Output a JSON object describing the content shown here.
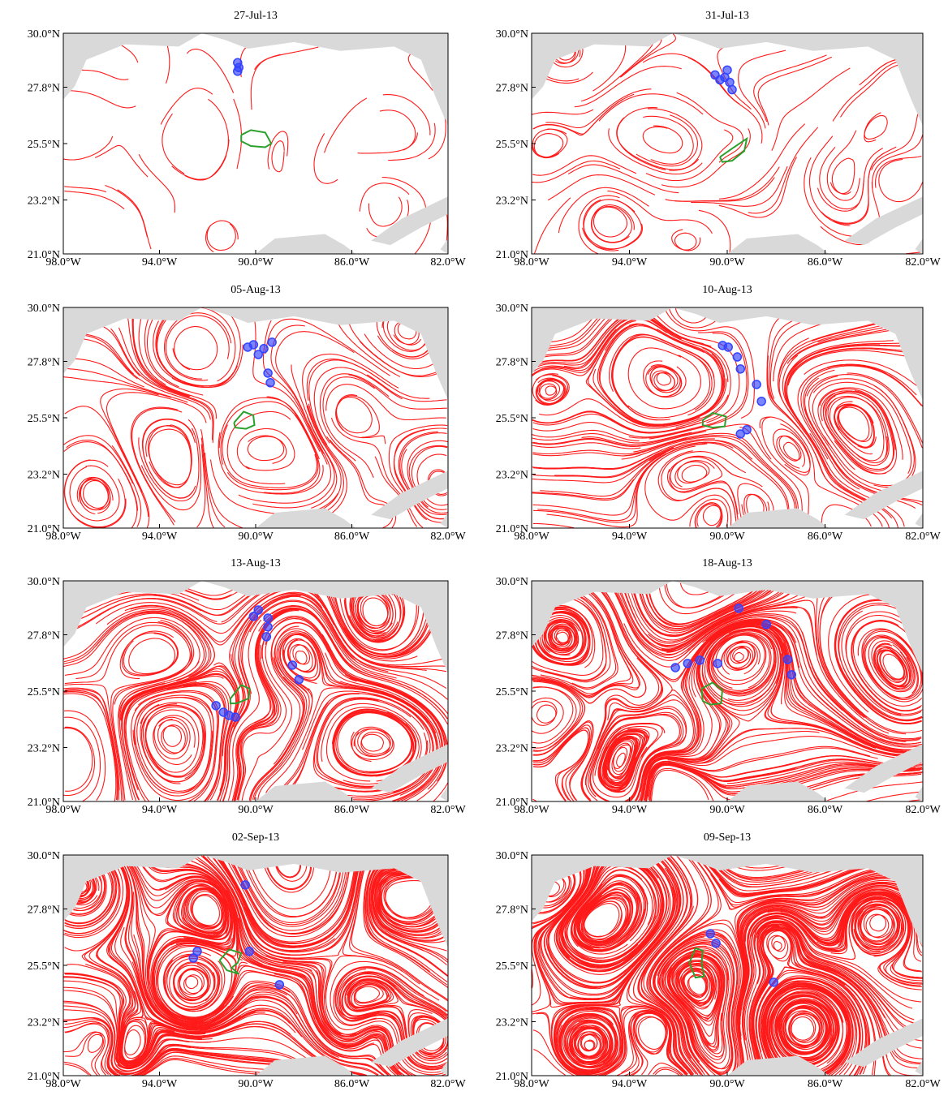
{
  "chart_data": [
    {
      "type": "scatter",
      "title": "27-Jul-13",
      "xlim": [
        -98,
        -82
      ],
      "ylim": [
        21,
        30
      ],
      "xticks": [
        {
          "value": -98,
          "label": "98.0°W"
        },
        {
          "value": -94,
          "label": "94.0°W"
        },
        {
          "value": -90,
          "label": "90.0°W"
        },
        {
          "value": -86,
          "label": "86.0°W"
        },
        {
          "value": -82,
          "label": "82.0°W"
        }
      ],
      "yticks": [
        {
          "value": 21,
          "label": "21.0°N"
        },
        {
          "value": 23.2,
          "label": "23.2°N"
        },
        {
          "value": 25.5,
          "label": "25.5°N"
        },
        {
          "value": 27.8,
          "label": "27.8°N"
        },
        {
          "value": 30,
          "label": "30.0°N"
        }
      ],
      "points": {
        "color": "#3344ff",
        "x": [
          -90.75,
          -90.7,
          -90.75
        ],
        "y": [
          28.8,
          28.6,
          28.45
        ]
      },
      "contour": {
        "color": "#2ca02c",
        "x": [
          -90.6,
          -90.2,
          -89.6,
          -89.35,
          -89.6,
          -90.2,
          -90.6,
          -90.6
        ],
        "y": [
          25.85,
          26.05,
          25.95,
          25.5,
          25.35,
          25.4,
          25.6,
          25.85
        ]
      },
      "streamline_color": "#ff1a1a",
      "land_color": "#d9d9d9"
    },
    {
      "type": "scatter",
      "title": "31-Jul-13",
      "xlim": [
        -98,
        -82
      ],
      "ylim": [
        21,
        30
      ],
      "xticks": [
        {
          "value": -98,
          "label": "98.0°W"
        },
        {
          "value": -94,
          "label": "94.0°W"
        },
        {
          "value": -90,
          "label": "90.0°W"
        },
        {
          "value": -86,
          "label": "86.0°W"
        },
        {
          "value": -82,
          "label": "82.0°W"
        }
      ],
      "yticks": [
        {
          "value": 21,
          "label": "21.0°N"
        },
        {
          "value": 23.2,
          "label": "23.2°N"
        },
        {
          "value": 25.5,
          "label": "25.5°N"
        },
        {
          "value": 27.8,
          "label": "27.8°N"
        },
        {
          "value": 30,
          "label": "30.0°N"
        }
      ],
      "points": {
        "color": "#3344ff",
        "x": [
          -90.5,
          -90.3,
          -90.0,
          -89.9,
          -89.8,
          -90.1
        ],
        "y": [
          28.3,
          28.1,
          28.5,
          28.0,
          27.7,
          28.2
        ]
      },
      "contour": {
        "color": "#2ca02c",
        "x": [
          -90.3,
          -89.8,
          -89.2,
          -89.3,
          -89.8,
          -90.2,
          -90.3
        ],
        "y": [
          24.95,
          25.3,
          25.7,
          25.2,
          24.8,
          24.75,
          24.95
        ]
      },
      "streamline_color": "#ff1a1a",
      "land_color": "#d9d9d9"
    },
    {
      "type": "scatter",
      "title": "05-Aug-13",
      "xlim": [
        -98,
        -82
      ],
      "ylim": [
        21,
        30
      ],
      "xticks": [
        {
          "value": -98,
          "label": "98.0°W"
        },
        {
          "value": -94,
          "label": "94.0°W"
        },
        {
          "value": -90,
          "label": "90.0°W"
        },
        {
          "value": -86,
          "label": "86.0°W"
        },
        {
          "value": -82,
          "label": "82.0°W"
        }
      ],
      "yticks": [
        {
          "value": 21,
          "label": "21.0°N"
        },
        {
          "value": 23.2,
          "label": "23.2°N"
        },
        {
          "value": 25.5,
          "label": "25.5°N"
        },
        {
          "value": 27.8,
          "label": "27.8°N"
        },
        {
          "value": 30,
          "label": "30.0°N"
        }
      ],
      "points": {
        "color": "#3344ff",
        "x": [
          -90.33,
          -90.09,
          -89.89,
          -89.66,
          -89.32,
          -89.49,
          -89.39
        ],
        "y": [
          28.38,
          28.48,
          28.08,
          28.32,
          28.58,
          27.32,
          26.93
        ]
      },
      "contour": {
        "color": "#2ca02c",
        "x": [
          -90.9,
          -90.5,
          -90.1,
          -90.05,
          -90.4,
          -90.85,
          -90.9
        ],
        "y": [
          25.3,
          25.75,
          25.6,
          25.2,
          25.05,
          25.1,
          25.3
        ]
      },
      "streamline_color": "#ff1a1a",
      "land_color": "#d9d9d9"
    },
    {
      "type": "scatter",
      "title": "10-Aug-13",
      "xlim": [
        -98,
        -82
      ],
      "ylim": [
        21,
        30
      ],
      "xticks": [
        {
          "value": -98,
          "label": "98.0°W"
        },
        {
          "value": -94,
          "label": "94.0°W"
        },
        {
          "value": -90,
          "label": "90.0°W"
        },
        {
          "value": -86,
          "label": "86.0°W"
        },
        {
          "value": -82,
          "label": "82.0°W"
        }
      ],
      "yticks": [
        {
          "value": 21,
          "label": "21.0°N"
        },
        {
          "value": 23.2,
          "label": "23.2°N"
        },
        {
          "value": 25.5,
          "label": "25.5°N"
        },
        {
          "value": 27.8,
          "label": "27.8°N"
        },
        {
          "value": 30,
          "label": "30.0°N"
        }
      ],
      "points": {
        "color": "#3344ff",
        "x": [
          -90.19,
          -89.96,
          -89.59,
          -89.46,
          -88.8,
          -88.6,
          -89.46,
          -89.2
        ],
        "y": [
          28.45,
          28.38,
          27.98,
          27.49,
          26.86,
          26.17,
          24.84,
          25.01
        ]
      },
      "contour": {
        "color": "#2ca02c",
        "x": [
          -91.0,
          -90.6,
          -90.05,
          -90.1,
          -90.6,
          -91.0,
          -91.0
        ],
        "y": [
          25.4,
          25.7,
          25.55,
          25.15,
          25.1,
          25.2,
          25.4
        ]
      },
      "streamline_color": "#ff1a1a",
      "land_color": "#d9d9d9"
    },
    {
      "type": "scatter",
      "title": "13-Aug-13",
      "xlim": [
        -98,
        -82
      ],
      "ylim": [
        21,
        30
      ],
      "xticks": [
        {
          "value": -98,
          "label": "98.0°W"
        },
        {
          "value": -94,
          "label": "94.0°W"
        },
        {
          "value": -90,
          "label": "90.0°W"
        },
        {
          "value": -86,
          "label": "86.0°W"
        },
        {
          "value": -82,
          "label": "82.0°W"
        }
      ],
      "yticks": [
        {
          "value": 21,
          "label": "21.0°N"
        },
        {
          "value": 23.2,
          "label": "23.2°N"
        },
        {
          "value": 25.5,
          "label": "25.5°N"
        },
        {
          "value": 27.8,
          "label": "27.8°N"
        },
        {
          "value": 30,
          "label": "30.0°N"
        }
      ],
      "points": {
        "color": "#3344ff",
        "x": [
          -89.89,
          -90.09,
          -89.49,
          -89.49,
          -89.55,
          -88.47,
          -88.2,
          -91.65,
          -91.34,
          -91.11,
          -90.84
        ],
        "y": [
          28.81,
          28.55,
          28.48,
          28.12,
          27.72,
          26.56,
          25.97,
          24.91,
          24.64,
          24.51,
          24.44
        ]
      },
      "contour": {
        "color": "#2ca02c",
        "x": [
          -91.05,
          -90.6,
          -90.25,
          -90.3,
          -90.8,
          -91.05,
          -91.05
        ],
        "y": [
          25.2,
          25.75,
          25.6,
          25.2,
          25.0,
          25.0,
          25.2
        ]
      },
      "streamline_color": "#ff1a1a",
      "land_color": "#d9d9d9"
    },
    {
      "type": "scatter",
      "title": "18-Aug-13",
      "xlim": [
        -98,
        -82
      ],
      "ylim": [
        21,
        30
      ],
      "xticks": [
        {
          "value": -98,
          "label": "98.0°W"
        },
        {
          "value": -94,
          "label": "94.0°W"
        },
        {
          "value": -90,
          "label": "90.0°W"
        },
        {
          "value": -86,
          "label": "86.0°W"
        },
        {
          "value": -82,
          "label": "82.0°W"
        }
      ],
      "yticks": [
        {
          "value": 21,
          "label": "21.0°N"
        },
        {
          "value": 23.2,
          "label": "23.2°N"
        },
        {
          "value": 25.5,
          "label": "25.5°N"
        },
        {
          "value": 27.8,
          "label": "27.8°N"
        },
        {
          "value": 30,
          "label": "30.0°N"
        }
      ],
      "points": {
        "color": "#3344ff",
        "x": [
          -89.53,
          -88.4,
          -87.53,
          -87.37,
          -92.12,
          -91.62,
          -91.12,
          -90.39
        ],
        "y": [
          28.88,
          28.22,
          26.79,
          26.17,
          26.46,
          26.63,
          26.76,
          26.63
        ]
      },
      "contour": {
        "color": "#2ca02c",
        "x": [
          -91.05,
          -90.6,
          -90.2,
          -90.25,
          -90.7,
          -91.0,
          -91.05
        ],
        "y": [
          25.6,
          25.85,
          25.55,
          25.0,
          24.95,
          25.1,
          25.6
        ]
      },
      "streamline_color": "#ff1a1a",
      "land_color": "#d9d9d9"
    },
    {
      "type": "scatter",
      "title": "02-Sep-13",
      "xlim": [
        -98,
        -82
      ],
      "ylim": [
        21,
        30
      ],
      "xticks": [
        {
          "value": -98,
          "label": "98.0°W"
        },
        {
          "value": -94,
          "label": "94.0°W"
        },
        {
          "value": -90,
          "label": "90.0°W"
        },
        {
          "value": -86,
          "label": "86.0°W"
        },
        {
          "value": -82,
          "label": "82.0°W"
        }
      ],
      "yticks": [
        {
          "value": 21,
          "label": "21.0°N"
        },
        {
          "value": 23.2,
          "label": "23.2°N"
        },
        {
          "value": 25.5,
          "label": "25.5°N"
        },
        {
          "value": 27.8,
          "label": "27.8°N"
        },
        {
          "value": 30,
          "label": "30.0°N"
        }
      ],
      "points": {
        "color": "#3344ff",
        "x": [
          -90.43,
          -90.26,
          -92.43,
          -92.59,
          -89.01
        ],
        "y": [
          28.78,
          26.07,
          26.07,
          25.8,
          24.71
        ]
      },
      "contour": {
        "color": "#2ca02c",
        "x": [
          -91.5,
          -91.1,
          -90.6,
          -90.75,
          -91.0,
          -90.7,
          -91.2,
          -91.5
        ],
        "y": [
          25.7,
          26.15,
          26.0,
          25.6,
          25.4,
          25.15,
          25.3,
          25.7
        ]
      },
      "streamline_color": "#ff1a1a",
      "land_color": "#d9d9d9"
    },
    {
      "type": "scatter",
      "title": "09-Sep-13",
      "xlim": [
        -98,
        -82
      ],
      "ylim": [
        21,
        30
      ],
      "xticks": [
        {
          "value": -98,
          "label": "98.0°W"
        },
        {
          "value": -94,
          "label": "94.0°W"
        },
        {
          "value": -90,
          "label": "90.0°W"
        },
        {
          "value": -86,
          "label": "86.0°W"
        },
        {
          "value": -82,
          "label": "82.0°W"
        }
      ],
      "yticks": [
        {
          "value": 21,
          "label": "21.0°N"
        },
        {
          "value": 23.2,
          "label": "23.2°N"
        },
        {
          "value": 25.5,
          "label": "25.5°N"
        },
        {
          "value": 27.8,
          "label": "27.8°N"
        },
        {
          "value": 30,
          "label": "30.0°N"
        }
      ],
      "points": {
        "color": "#3344ff",
        "x": [
          -90.69,
          -90.46,
          -88.1
        ],
        "y": [
          26.79,
          26.4,
          24.81
        ]
      },
      "contour": {
        "color": "#2ca02c",
        "x": [
          -91.55,
          -91.3,
          -91.0,
          -91.05,
          -90.95,
          -91.3,
          -91.55
        ],
        "y": [
          25.6,
          26.2,
          26.1,
          25.6,
          25.05,
          25.0,
          25.6
        ]
      },
      "streamline_color": "#ff1a1a",
      "land_color": "#d9d9d9"
    }
  ]
}
